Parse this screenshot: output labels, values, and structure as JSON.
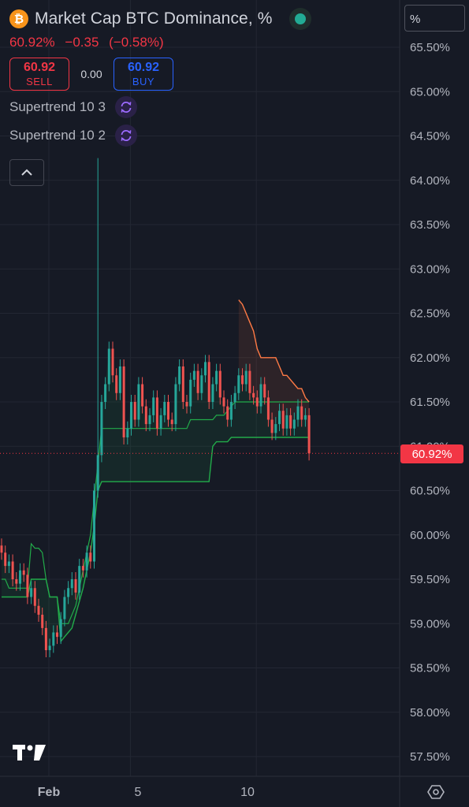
{
  "header": {
    "icon_glyph": "₿",
    "title": "Market Cap BTC Dominance, %",
    "last_value": "60.92%",
    "change": "−0.35",
    "change_pct": "(−0.58%)"
  },
  "trade": {
    "sell_price": "60.92",
    "sell_label": "SELL",
    "spread": "0.00",
    "buy_price": "60.92",
    "buy_label": "BUY"
  },
  "indicators": [
    {
      "label": "Supertrend 10 3",
      "icon": "refresh-icon"
    },
    {
      "label": "Supertrend 10 2",
      "icon": "refresh-icon"
    }
  ],
  "price_scale": {
    "unit_label": "%",
    "current_label": "60.92%",
    "current_value": 60.92
  },
  "colors": {
    "background": "#161a25",
    "up": "#26a69a",
    "down": "#ef5350",
    "supertrend_up": "#22ab4a",
    "supertrend_down": "#ff7a45",
    "sell": "#f23645",
    "buy": "#2962ff"
  },
  "chart_data": {
    "type": "candlestick",
    "title": "Market Cap BTC Dominance, %",
    "ylim": [
      57.3,
      65.8
    ],
    "y_ticks": [
      "65.50%",
      "65.00%",
      "64.50%",
      "64.00%",
      "63.50%",
      "63.00%",
      "62.50%",
      "62.00%",
      "61.50%",
      "61.00%",
      "60.50%",
      "60.00%",
      "59.50%",
      "59.00%",
      "58.50%",
      "58.00%",
      "57.50%"
    ],
    "y_tick_values": [
      65.5,
      65.0,
      64.5,
      64.0,
      63.5,
      63.0,
      62.5,
      62.0,
      61.5,
      61.0,
      60.5,
      60.0,
      59.5,
      59.0,
      58.5,
      58.0,
      57.5
    ],
    "x_ticks": [
      "Feb",
      "5",
      "10"
    ],
    "x_tick_bars": [
      12,
      34,
      68
    ],
    "grid": true,
    "close_values": [
      59.8,
      59.65,
      59.7,
      59.5,
      59.45,
      59.6,
      59.55,
      59.3,
      59.4,
      59.2,
      59.1,
      58.95,
      58.7,
      58.75,
      58.9,
      58.85,
      59.05,
      59.3,
      59.4,
      59.5,
      59.35,
      59.65,
      59.6,
      59.8,
      59.7,
      60.5,
      60.9,
      61.5,
      61.7,
      62.1,
      61.8,
      61.6,
      61.9,
      61.1,
      61.2,
      61.5,
      61.3,
      61.7,
      61.45,
      61.25,
      61.35,
      61.55,
      61.2,
      61.35,
      61.5,
      61.3,
      61.25,
      61.7,
      61.9,
      61.5,
      61.45,
      61.75,
      61.85,
      61.6,
      61.8,
      61.95,
      61.5,
      61.7,
      61.85,
      61.55,
      61.45,
      61.3,
      61.5,
      61.6,
      61.8,
      61.7,
      61.85,
      61.6,
      61.55,
      61.45,
      61.7,
      61.55,
      61.3,
      61.15,
      61.25,
      61.4,
      61.2,
      61.35,
      61.2,
      61.3,
      61.45,
      61.3,
      61.35,
      60.92
    ],
    "supertrend_10_3": [
      59.3,
      59.3,
      59.3,
      59.3,
      59.3,
      59.3,
      59.3,
      59.3,
      59.5,
      59.5,
      59.5,
      59.5,
      59.5,
      59.3,
      59.3,
      59.3,
      58.8,
      58.85,
      58.9,
      58.95,
      59.1,
      59.25,
      59.4,
      59.6,
      59.8,
      60.1,
      60.5,
      60.6,
      60.6,
      60.6,
      60.6,
      60.6,
      60.6,
      60.6,
      60.6,
      60.6,
      60.6,
      60.6,
      60.6,
      60.6,
      60.6,
      60.6,
      60.6,
      60.6,
      60.6,
      60.6,
      60.6,
      60.6,
      60.6,
      60.6,
      60.6,
      60.6,
      60.6,
      60.6,
      60.6,
      60.6,
      60.6,
      61.0,
      61.05,
      61.05,
      61.05,
      61.05,
      61.1,
      61.1,
      61.1,
      61.1,
      61.1,
      61.1,
      61.1,
      61.1,
      61.1,
      61.1,
      61.1,
      61.1,
      61.1,
      61.1,
      61.1,
      61.1,
      61.1,
      61.1,
      61.1,
      61.1,
      61.1,
      61.1
    ],
    "supertrend_10_2": [
      59.5,
      59.5,
      59.4,
      59.4,
      59.4,
      59.4,
      59.4,
      59.4,
      59.9,
      59.85,
      59.85,
      59.8,
      59.5,
      59.3,
      59.3,
      59.3,
      59.0,
      59.0,
      59.0,
      59.1,
      59.2,
      59.4,
      59.6,
      59.8,
      60.0,
      60.4,
      60.8,
      61.2,
      61.2,
      61.2,
      61.2,
      61.2,
      61.2,
      61.2,
      61.2,
      61.2,
      61.2,
      61.2,
      61.2,
      61.2,
      61.2,
      61.2,
      61.2,
      61.2,
      61.2,
      61.2,
      61.2,
      61.2,
      61.2,
      61.2,
      61.2,
      61.3,
      61.3,
      61.3,
      61.3,
      61.3,
      61.3,
      61.3,
      61.35,
      61.35,
      61.35,
      61.4,
      61.45,
      61.5,
      61.5,
      61.5,
      61.5,
      61.5,
      61.5,
      61.5,
      61.5,
      61.5,
      61.5,
      61.5,
      61.5,
      61.5,
      61.5,
      61.5,
      61.5,
      61.5,
      61.5,
      61.5,
      61.5,
      61.5
    ],
    "supertrend_upper": [
      62.65,
      62.6,
      62.5,
      62.4,
      62.3,
      62.1,
      62.0,
      62.0,
      62.0,
      62.0,
      62.0,
      61.9,
      61.8,
      61.8,
      61.75,
      61.7,
      61.65,
      61.65,
      61.55,
      61.5
    ],
    "spike_high": 64.25,
    "current_value": 60.92
  }
}
